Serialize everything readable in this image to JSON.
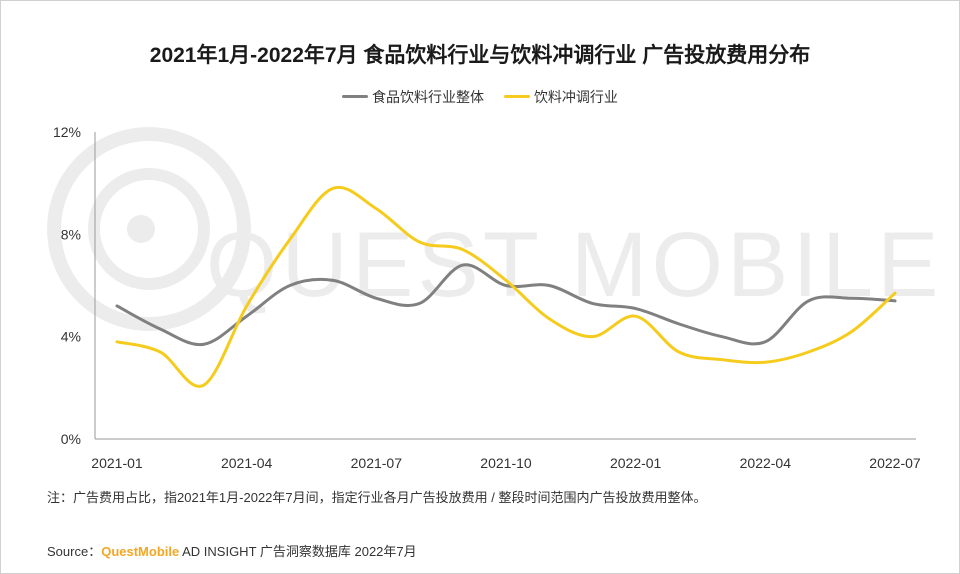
{
  "chart_data": {
    "type": "line",
    "title": "2021年1月-2022年7月 食品饮料行业与饮料冲调行业 广告投放费用分布",
    "ylim": [
      0,
      12
    ],
    "y_ticks": [
      {
        "v": 0,
        "label": "0%"
      },
      {
        "v": 4,
        "label": "4%"
      },
      {
        "v": 8,
        "label": "8%"
      },
      {
        "v": 12,
        "label": "12%"
      }
    ],
    "x": [
      "2021-01",
      "2021-02",
      "2021-03",
      "2021-04",
      "2021-05",
      "2021-06",
      "2021-07",
      "2021-08",
      "2021-09",
      "2021-10",
      "2021-11",
      "2021-12",
      "2022-01",
      "2022-02",
      "2022-03",
      "2022-04",
      "2022-05",
      "2022-06",
      "2022-07"
    ],
    "x_tick_labels": [
      {
        "i": 0,
        "label": "2021-01"
      },
      {
        "i": 3,
        "label": "2021-04"
      },
      {
        "i": 6,
        "label": "2021-07"
      },
      {
        "i": 9,
        "label": "2021-10"
      },
      {
        "i": 12,
        "label": "2022-01"
      },
      {
        "i": 15,
        "label": "2022-04"
      },
      {
        "i": 18,
        "label": "2022-07"
      }
    ],
    "series": [
      {
        "name": "食品饮料行业整体",
        "color": "#808080",
        "values": [
          5.2,
          4.3,
          3.7,
          4.8,
          6.0,
          6.2,
          5.5,
          5.3,
          6.8,
          6.0,
          6.0,
          5.3,
          5.1,
          4.5,
          4.0,
          3.8,
          5.4,
          5.5,
          5.4
        ]
      },
      {
        "name": "饮料冲调行业",
        "color": "#f5cc1d",
        "values": [
          3.8,
          3.4,
          2.1,
          5.2,
          7.8,
          9.8,
          9.0,
          7.7,
          7.4,
          6.2,
          4.7,
          4.0,
          4.8,
          3.4,
          3.1,
          3.0,
          3.4,
          4.2,
          5.7
        ]
      }
    ]
  },
  "footer": {
    "note": "注：广告费用占比，指2021年1月-2022年7月间，指定行业各月广告投放费用 / 整段时间范围内广告投放费用整体。",
    "source_prefix": "Source：",
    "source_brand": "QuestMobile",
    "source_rest": " AD INSIGHT 广告洞察数据库 2022年7月"
  }
}
